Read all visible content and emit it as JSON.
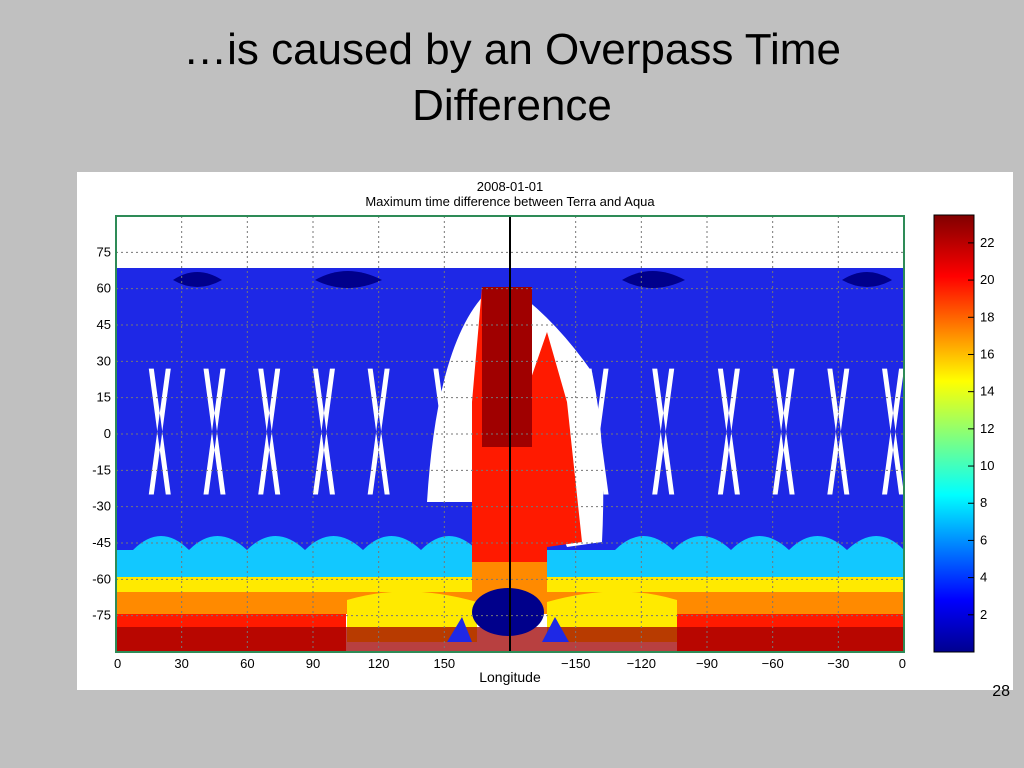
{
  "slide": {
    "title_line1": "…is caused by an Overpass Time",
    "title_line2": "Difference",
    "page_number": "28"
  },
  "chart_data": {
    "type": "heatmap",
    "title": "2008-01-01",
    "subtitle": "Maximum time difference between Terra and Aqua",
    "xlabel": "Longitude",
    "ylabel": "",
    "x_ticks": [
      "0",
      "30",
      "60",
      "90",
      "120",
      "150",
      "−150",
      "−120",
      "−90",
      "−60",
      "−30",
      "0"
    ],
    "x_tick_values": [
      0,
      30,
      60,
      90,
      120,
      150,
      210,
      240,
      270,
      300,
      330,
      360
    ],
    "xlim": [
      0,
      360
    ],
    "y_ticks": [
      75,
      60,
      45,
      30,
      15,
      0,
      -15,
      -30,
      -45,
      -60,
      -75
    ],
    "ylim": [
      -90,
      90
    ],
    "grid": true,
    "colorbar": {
      "ticks": [
        2,
        4,
        6,
        8,
        10,
        12,
        14,
        16,
        18,
        20,
        22
      ],
      "range": [
        0,
        23.5
      ],
      "colormap": "jet"
    },
    "regions": {
      "background_value": 3,
      "polar_mask_lat": 67,
      "no_data_color": "#ffffff",
      "swath_gap_longitudes": [
        20,
        45,
        70,
        95,
        120,
        150,
        220,
        250,
        280,
        305,
        330,
        355
      ],
      "antimeridian_red_band": {
        "lon_range": [
          163,
          198
        ],
        "lat_range": [
          -75,
          60
        ],
        "value": 21
      },
      "southern_bands": [
        {
          "lat_range": [
            -62,
            -50
          ],
          "value": 7.5
        },
        {
          "lat_range": [
            -72,
            -62
          ],
          "value": 14
        },
        {
          "lat_range": [
            -80,
            -72
          ],
          "value": 20
        },
        {
          "lat_range": [
            -90,
            -80
          ],
          "value": 22.5
        }
      ]
    },
    "colors": {
      "dark_blue": "#00008b",
      "blue": "#1e28e6",
      "cyan": "#12c8ff",
      "yellow": "#ffea00",
      "orange": "#ff8a00",
      "red": "#ff1a00",
      "dark_red": "#a00000",
      "plot_frame": "#2e8b57"
    }
  }
}
